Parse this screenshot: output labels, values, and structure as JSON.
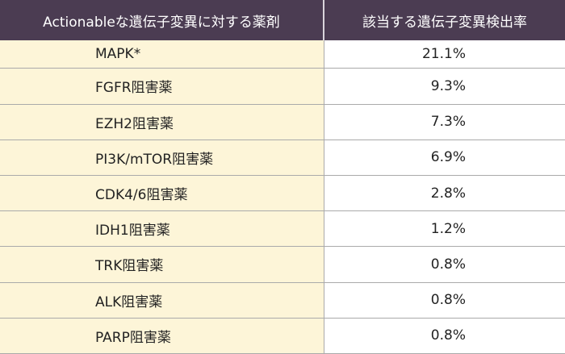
{
  "table": {
    "header": [
      "Actionableな遺伝子変異に対する薬剤",
      "該当する遺伝子変異検出率"
    ],
    "rows": [
      [
        "MAPK*",
        "21.1%"
      ],
      [
        "FGFR阻害薬",
        "9.3%"
      ],
      [
        "EZH2阻害薬",
        "7.3%"
      ],
      [
        "PI3K/mTOR阻害薬",
        "6.9%"
      ],
      [
        "CDK4/6阻害薬",
        "2.8%"
      ],
      [
        "IDH1阻害薬",
        "1.2%"
      ],
      [
        "TRK阻害薬",
        "0.8%"
      ],
      [
        "ALK阻害薬",
        "0.8%"
      ],
      [
        "PARP阻害薬",
        "0.8%"
      ]
    ]
  }
}
